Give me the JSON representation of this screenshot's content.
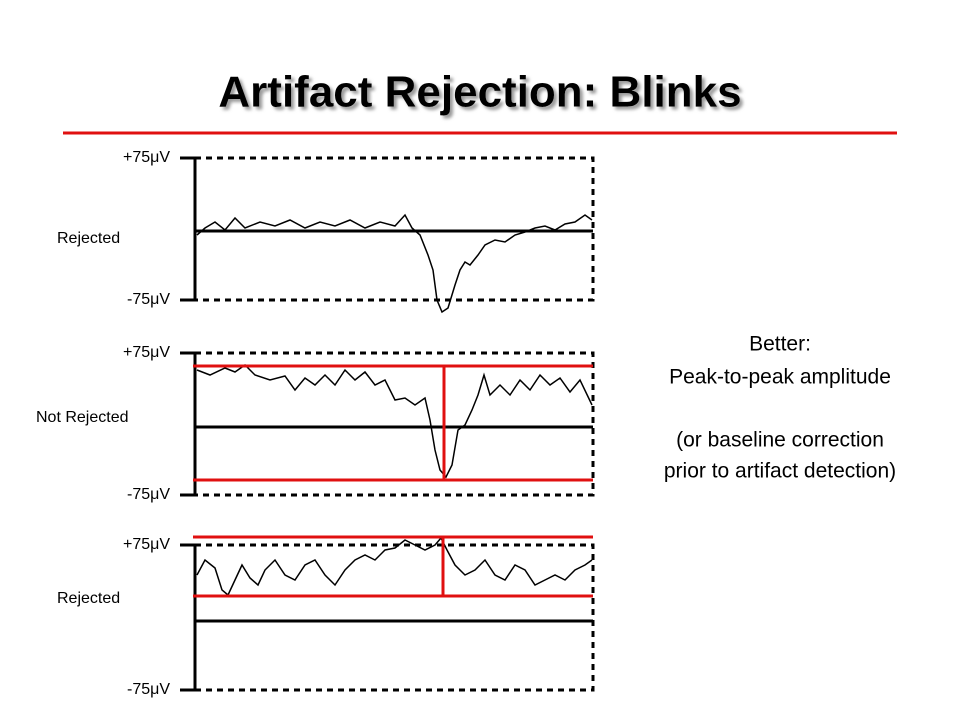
{
  "title": "Artifact Rejection: Blinks",
  "panels": [
    {
      "top_label": "+75μV",
      "bottom_label": "-75μV",
      "status": "Rejected"
    },
    {
      "top_label": "+75μV",
      "bottom_label": "-75μV",
      "status": "Not Rejected"
    },
    {
      "top_label": "+75μV",
      "bottom_label": "-75μV",
      "status": "Rejected"
    }
  ],
  "note": {
    "lines": [
      "Better:",
      "Peak-to-peak amplitude",
      "(or baseline correction",
      "prior to artifact detection)"
    ]
  }
}
